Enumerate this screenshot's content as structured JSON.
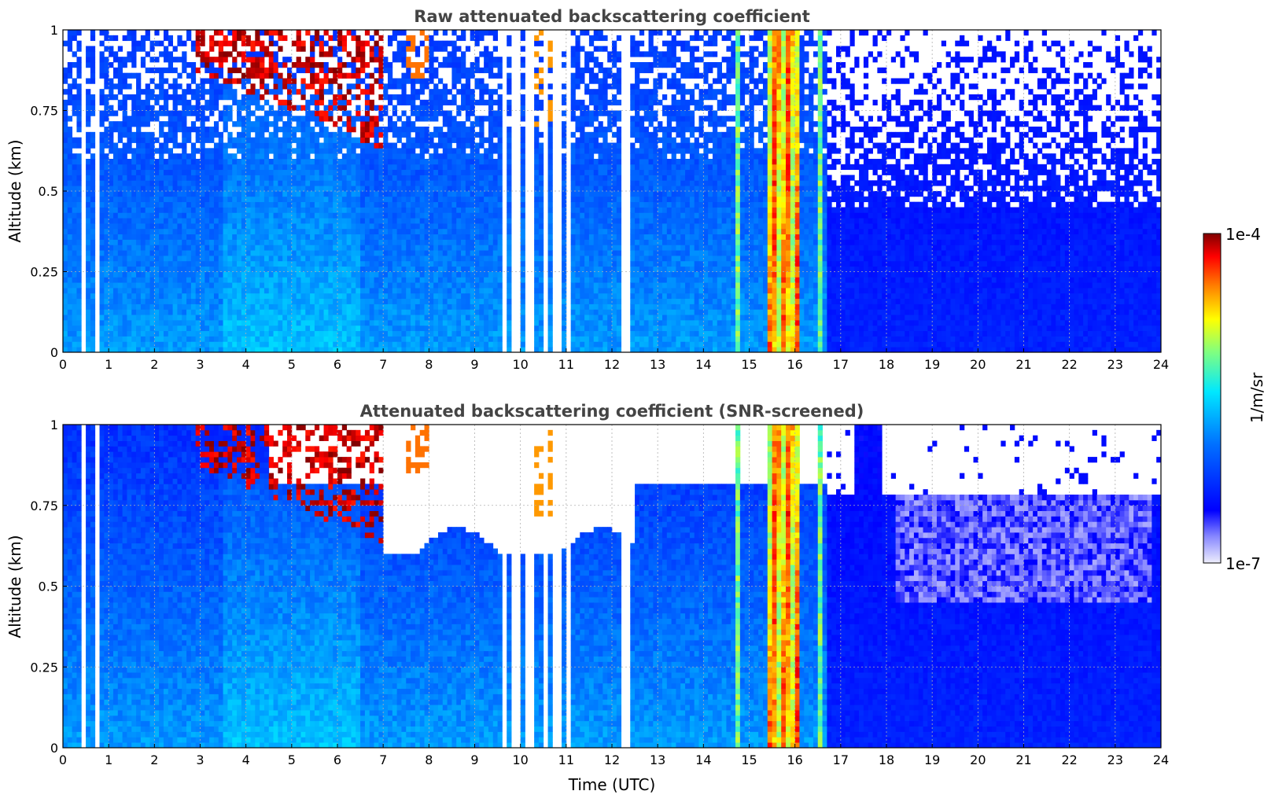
{
  "chart_data": [
    {
      "type": "heatmap",
      "title": "Raw attenuated backscattering coefficient",
      "xlabel": "",
      "ylabel": "Altitude (km)",
      "x_ticks": [
        "0",
        "1",
        "2",
        "3",
        "4",
        "5",
        "6",
        "7",
        "8",
        "9",
        "10",
        "11",
        "12",
        "13",
        "14",
        "15",
        "16",
        "17",
        "18",
        "19",
        "20",
        "21",
        "22",
        "23",
        "24"
      ],
      "y_ticks": [
        "0",
        "0.25",
        "0.5",
        "0.75",
        "1"
      ],
      "xlim": [
        0,
        24
      ],
      "ylim": [
        0,
        1
      ],
      "grid": true,
      "variant": "raw"
    },
    {
      "type": "heatmap",
      "title": "Attenuated backscattering coefficient (SNR-screened)",
      "xlabel": "Time (UTC)",
      "ylabel": "Altitude (km)",
      "x_ticks": [
        "0",
        "1",
        "2",
        "3",
        "4",
        "5",
        "6",
        "7",
        "8",
        "9",
        "10",
        "11",
        "12",
        "13",
        "14",
        "15",
        "16",
        "17",
        "18",
        "19",
        "20",
        "21",
        "22",
        "23",
        "24"
      ],
      "y_ticks": [
        "0",
        "0.25",
        "0.5",
        "0.75",
        "1"
      ],
      "xlim": [
        0,
        24
      ],
      "ylim": [
        0,
        1
      ],
      "grid": true,
      "variant": "screened"
    }
  ],
  "colorbar": {
    "max_label": "1e-4",
    "min_label": "1e-7",
    "unit_label": "1/m/sr",
    "scale": "log",
    "colormap": "jet"
  },
  "features": {
    "gap_columns_hours": [
      0.45,
      0.75,
      9.65,
      9.9,
      10.2,
      10.55,
      10.8,
      11.05,
      12.3
    ],
    "intense_cloud_hours": [
      14.75,
      16.55
    ],
    "clear_regime_start_hour": 16.7
  }
}
